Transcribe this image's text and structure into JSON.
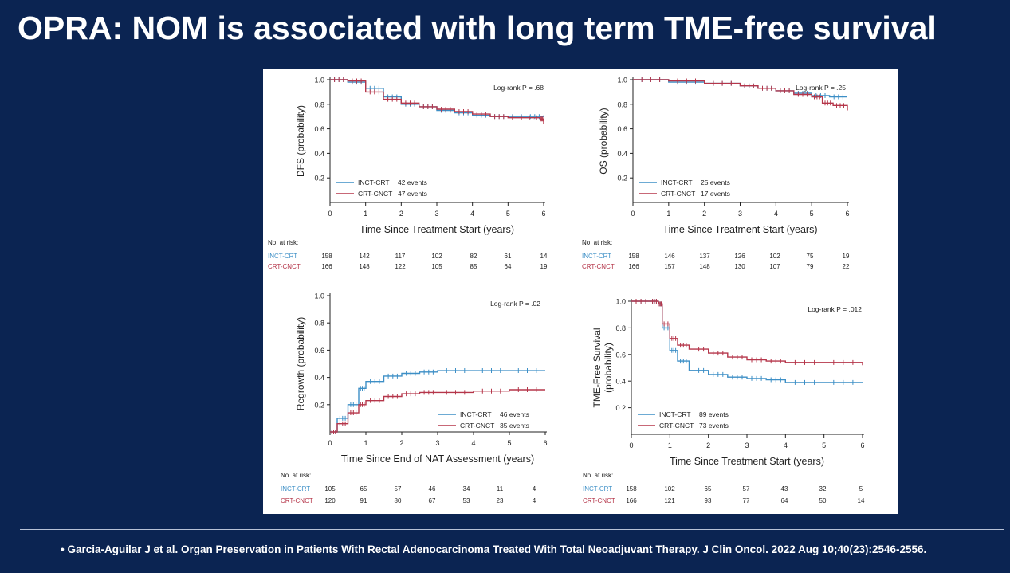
{
  "slide": {
    "title": "OPRA: NOM is associated with long term TME-free survival",
    "citation": "• Garcia-Aguilar J et al. Organ Preservation in Patients With Rectal Adenocarcinoma Treated With Total Neoadjuvant Therapy. J Clin Oncol. 2022 Aug 10;40(23):2546-2556."
  },
  "colors": {
    "background": "#0b2452",
    "inct_crt": "#3d8fc6",
    "crt_cnct": "#b5364a"
  },
  "chart_data": [
    {
      "type": "line",
      "ylabel": "DFS (probability)",
      "xlabel": "Time Since Treatment Start (years)",
      "xlim": [
        0,
        6
      ],
      "ylim": [
        0,
        1.0
      ],
      "xticks": [
        "0",
        "1",
        "2",
        "3",
        "4",
        "5",
        "6"
      ],
      "yticks": [
        "0.2",
        "0.4",
        "0.6",
        "0.8",
        "1.0"
      ],
      "annotation": "Log-rank P = .68",
      "legend_position": "bottom-left",
      "series": [
        {
          "name": "INCT-CRT",
          "events": "42 events",
          "x": [
            0,
            0.5,
            1,
            1.5,
            2,
            2.5,
            3,
            3.5,
            4,
            4.5,
            5,
            5.5,
            6
          ],
          "y": [
            1.0,
            0.98,
            0.93,
            0.86,
            0.8,
            0.78,
            0.75,
            0.73,
            0.71,
            0.7,
            0.7,
            0.7,
            0.71
          ]
        },
        {
          "name": "CRT-CNCT",
          "events": "47 events",
          "x": [
            0,
            0.5,
            1,
            1.5,
            2,
            2.5,
            3,
            3.5,
            4,
            4.5,
            5,
            5.5,
            5.9,
            6
          ],
          "y": [
            1.0,
            0.99,
            0.9,
            0.84,
            0.81,
            0.78,
            0.76,
            0.74,
            0.72,
            0.7,
            0.69,
            0.69,
            0.68,
            0.64
          ]
        }
      ],
      "risk_table": {
        "heading": "No. at risk:",
        "rows": [
          {
            "label": "INCT-CRT",
            "values": [
              "158",
              "142",
              "117",
              "102",
              "82",
              "61",
              "14"
            ]
          },
          {
            "label": "CRT-CNCT",
            "values": [
              "166",
              "148",
              "122",
              "105",
              "85",
              "64",
              "19"
            ]
          }
        ]
      }
    },
    {
      "type": "line",
      "ylabel": "OS (probability)",
      "xlabel": "Time Since Treatment Start (years)",
      "xlim": [
        0,
        6
      ],
      "ylim": [
        0,
        1.0
      ],
      "xticks": [
        "0",
        "1",
        "2",
        "3",
        "4",
        "5",
        "6"
      ],
      "yticks": [
        "0.2",
        "0.4",
        "0.6",
        "0.8",
        "1.0"
      ],
      "annotation": "Log-rank P = .25",
      "legend_position": "bottom-left",
      "series": [
        {
          "name": "INCT-CRT",
          "events": "25 events",
          "x": [
            0,
            1,
            2,
            3,
            3.5,
            4,
            4.5,
            5,
            5.5,
            6
          ],
          "y": [
            1.0,
            0.98,
            0.97,
            0.95,
            0.93,
            0.91,
            0.89,
            0.87,
            0.86,
            0.86
          ]
        },
        {
          "name": "CRT-CNCT",
          "events": "17 events",
          "x": [
            0,
            1,
            2,
            3,
            3.5,
            4,
            4.5,
            5,
            5.3,
            5.6,
            6
          ],
          "y": [
            1.0,
            0.99,
            0.97,
            0.95,
            0.93,
            0.91,
            0.88,
            0.86,
            0.81,
            0.79,
            0.75
          ]
        }
      ],
      "risk_table": {
        "heading": "No. at risk:",
        "rows": [
          {
            "label": "INCT-CRT",
            "values": [
              "158",
              "146",
              "137",
              "126",
              "102",
              "75",
              "19"
            ]
          },
          {
            "label": "CRT-CNCT",
            "values": [
              "166",
              "157",
              "148",
              "130",
              "107",
              "79",
              "22"
            ]
          }
        ]
      }
    },
    {
      "type": "line",
      "ylabel": "Regrowth (probability)",
      "xlabel": "Time Since End of NAT Assessment (years)",
      "xlim": [
        0,
        6
      ],
      "ylim": [
        0,
        1.0
      ],
      "xticks": [
        "0",
        "1",
        "2",
        "3",
        "4",
        "5",
        "6"
      ],
      "yticks": [
        "0.2",
        "0.4",
        "0.6",
        "0.8",
        "1.0"
      ],
      "annotation": "Log-rank P = .02",
      "legend_position": "bottom-right",
      "series": [
        {
          "name": "INCT-CRT",
          "events": "46 events",
          "x": [
            0,
            0.2,
            0.5,
            0.8,
            1,
            1.5,
            2,
            2.5,
            3,
            4,
            5,
            6
          ],
          "y": [
            0,
            0.1,
            0.2,
            0.32,
            0.37,
            0.41,
            0.43,
            0.44,
            0.45,
            0.45,
            0.45,
            0.45
          ]
        },
        {
          "name": "CRT-CNCT",
          "events": "35 events",
          "x": [
            0,
            0.2,
            0.5,
            0.8,
            1,
            1.5,
            2,
            2.5,
            3,
            4,
            5,
            6
          ],
          "y": [
            0,
            0.06,
            0.14,
            0.2,
            0.23,
            0.26,
            0.28,
            0.29,
            0.29,
            0.3,
            0.31,
            0.31
          ]
        }
      ],
      "risk_table": {
        "heading": "No. at risk:",
        "rows": [
          {
            "label": "INCT-CRT",
            "values": [
              "105",
              "65",
              "57",
              "46",
              "34",
              "11",
              "4"
            ]
          },
          {
            "label": "CRT-CNCT",
            "values": [
              "120",
              "91",
              "80",
              "67",
              "53",
              "23",
              "4"
            ]
          }
        ]
      }
    },
    {
      "type": "line",
      "ylabel": "TME-Free Survival (probability)",
      "xlabel": "Time Since Treatment Start (years)",
      "xlim": [
        0,
        6
      ],
      "ylim": [
        0,
        1.0
      ],
      "xticks": [
        "0",
        "1",
        "2",
        "3",
        "4",
        "5",
        "6"
      ],
      "yticks": [
        "0.2",
        "0.4",
        "0.6",
        "0.8",
        "1.0"
      ],
      "annotation": "Log-rank P = .012",
      "legend_position": "bottom-left",
      "series": [
        {
          "name": "INCT-CRT",
          "events": "89 events",
          "x": [
            0,
            0.5,
            0.7,
            0.8,
            1,
            1.2,
            1.5,
            2,
            2.5,
            3,
            3.5,
            4,
            5,
            6
          ],
          "y": [
            1.0,
            1.0,
            0.98,
            0.8,
            0.63,
            0.55,
            0.48,
            0.45,
            0.43,
            0.42,
            0.41,
            0.39,
            0.39,
            0.39
          ]
        },
        {
          "name": "CRT-CNCT",
          "events": "73 events",
          "x": [
            0,
            0.5,
            0.7,
            0.8,
            1,
            1.2,
            1.5,
            2,
            2.5,
            3,
            3.5,
            4,
            5,
            6
          ],
          "y": [
            1.0,
            1.0,
            0.98,
            0.83,
            0.72,
            0.67,
            0.64,
            0.61,
            0.58,
            0.56,
            0.55,
            0.54,
            0.54,
            0.52
          ]
        }
      ],
      "risk_table": {
        "heading": "No. at risk:",
        "rows": [
          {
            "label": "INCT-CRT",
            "values": [
              "158",
              "102",
              "65",
              "57",
              "43",
              "32",
              "5"
            ]
          },
          {
            "label": "CRT-CNCT",
            "values": [
              "166",
              "121",
              "93",
              "77",
              "64",
              "50",
              "14"
            ]
          }
        ]
      }
    }
  ]
}
